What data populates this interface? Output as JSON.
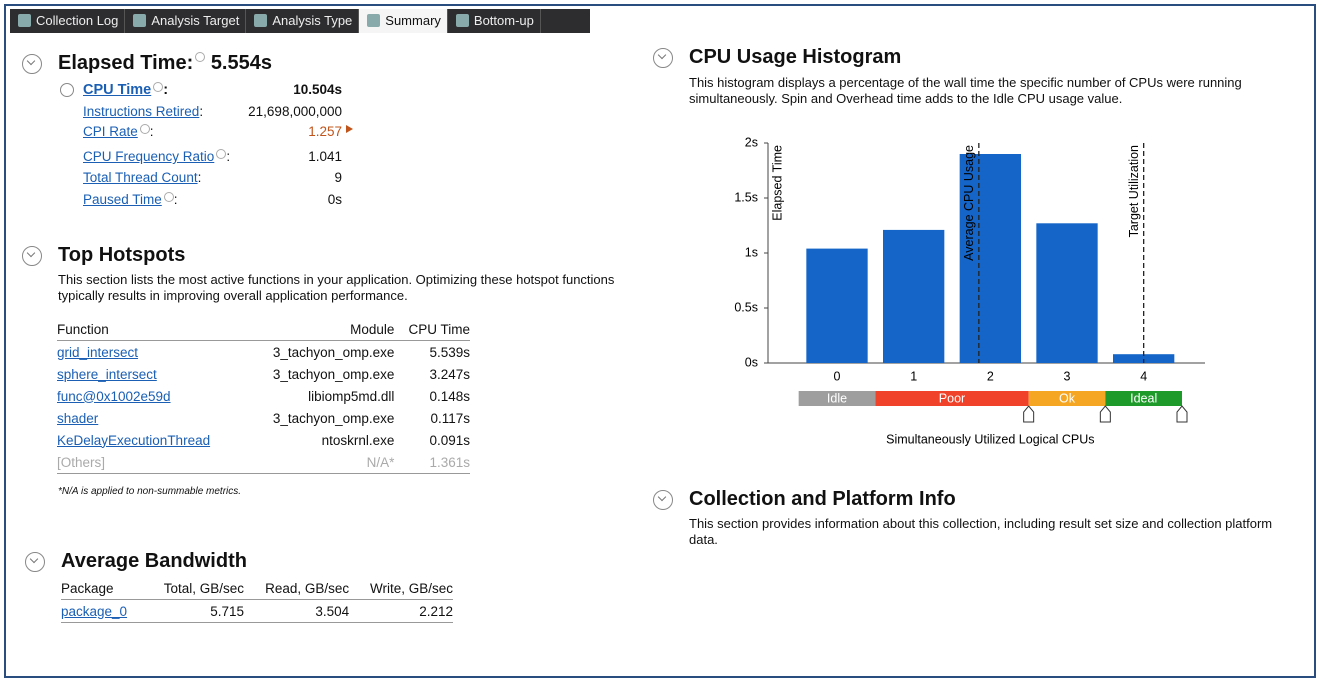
{
  "tabs": [
    "Collection Log",
    "Analysis Target",
    "Analysis Type",
    "Summary",
    "Bottom-up"
  ],
  "elapsed": {
    "title": "Elapsed Time",
    "value": "5.554s",
    "metrics": [
      {
        "label": "CPU Time",
        "value": "10.504s"
      },
      {
        "label": "Instructions Retired",
        "value": "21,698,000,000"
      },
      {
        "label": "CPI Rate",
        "value": "1.257"
      },
      {
        "label": "CPU Frequency Ratio",
        "value": "1.041"
      },
      {
        "label": "Total Thread Count",
        "value": "9"
      },
      {
        "label": "Paused Time",
        "value": "0s"
      }
    ]
  },
  "hotspots": {
    "title": "Top Hotspots",
    "description": "This section lists the most active functions in your application. Optimizing these hotspot functions typically results in improving overall application performance.",
    "columns": [
      "Function",
      "Module",
      "CPU Time"
    ],
    "rows": [
      [
        "grid_intersect",
        "3_tachyon_omp.exe",
        "5.539s"
      ],
      [
        "sphere_intersect",
        "3_tachyon_omp.exe",
        "3.247s"
      ],
      [
        "func@0x1002e59d",
        "libiomp5md.dll",
        "0.148s"
      ],
      [
        "shader",
        "3_tachyon_omp.exe",
        "0.117s"
      ],
      [
        "KeDelayExecutionThread",
        "ntoskrnl.exe",
        "0.091s"
      ],
      [
        "[Others]",
        "N/A*",
        "1.361s"
      ]
    ],
    "note": "*N/A is applied to non-summable metrics."
  },
  "bandwidth": {
    "title": "Average Bandwidth",
    "columns": [
      "Package",
      "Total, GB/sec",
      "Read, GB/sec",
      "Write, GB/sec"
    ],
    "rows": [
      [
        "package_0",
        "5.715",
        "3.504",
        "2.212"
      ]
    ]
  },
  "histogram": {
    "title": "CPU Usage Histogram",
    "description": "This histogram displays a percentage of the wall time the specific number of CPUs were running simultaneously. Spin and Overhead time adds to the Idle CPU usage value."
  },
  "chart_data": {
    "type": "bar",
    "categories": [
      "0",
      "1",
      "2",
      "3",
      "4"
    ],
    "values": [
      1.04,
      1.21,
      1.9,
      1.27,
      0.08
    ],
    "color": "#1565c8",
    "ylabel": "Elapsed Time",
    "xlabel": "Simultaneously Utilized Logical CPUs",
    "xlim": [
      -0.9,
      4.8
    ],
    "ylim": [
      0,
      2
    ],
    "yticks": [
      {
        "value": 0,
        "label": "0s"
      },
      {
        "value": 0.5,
        "label": "0.5s"
      },
      {
        "value": 1,
        "label": "1s"
      },
      {
        "value": 1.5,
        "label": "1.5s"
      },
      {
        "value": 2,
        "label": "2s"
      }
    ],
    "vlines": [
      {
        "label": "Average CPU Usage",
        "x": 1.85
      },
      {
        "label": "Target Utilization",
        "x": 4
      }
    ],
    "zones": [
      {
        "label": "Idle",
        "from": -0.5,
        "to": 0.5,
        "color": "#9e9e9e"
      },
      {
        "label": "Poor",
        "from": 0.5,
        "to": 2.5,
        "color": "#f0412a"
      },
      {
        "label": "Ok",
        "from": 2.5,
        "to": 3.5,
        "color": "#f5a623"
      },
      {
        "label": "Ideal",
        "from": 3.5,
        "to": 4.5,
        "color": "#1e9a2a"
      }
    ]
  },
  "collection": {
    "title": "Collection and Platform Info",
    "description": "This section provides information about this collection, including result set size and collection platform data."
  }
}
